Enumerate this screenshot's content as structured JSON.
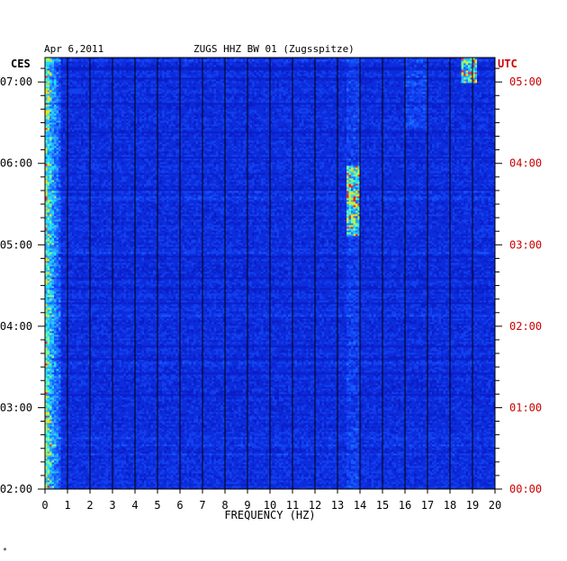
{
  "header": {
    "date": "Apr 6,2011",
    "station": "ZUGS HHZ BW 01 (Zugsspitze)"
  },
  "left_timezone": "CES",
  "right_timezone": "UTC",
  "corner_mark": "*",
  "chart_data": {
    "type": "heatmap",
    "title": "ZUGS HHZ BW 01 (Zugsspitze)",
    "subtitle": "Apr 6,2011",
    "xlabel": "FREQUENCY (HZ)",
    "ylabel": "",
    "xlim": [
      0,
      20
    ],
    "x_ticks": [
      "0",
      "1",
      "2",
      "3",
      "4",
      "5",
      "6",
      "7",
      "8",
      "9",
      "10",
      "11",
      "12",
      "13",
      "14",
      "15",
      "16",
      "17",
      "18",
      "19",
      "20"
    ],
    "left_y_axis": {
      "label": "CES",
      "ticks": [
        "02:00",
        "03:00",
        "04:00",
        "05:00",
        "06:00",
        "07:00"
      ]
    },
    "right_y_axis": {
      "label": "UTC",
      "ticks": [
        "00:00",
        "01:00",
        "02:00",
        "03:00",
        "04:00",
        "05:00"
      ]
    },
    "time_span_hours": 5.3,
    "grid": true,
    "colors": {
      "background_low": "#0a1fc8",
      "mid": "#1a7dff",
      "high": "#20e0ff",
      "peak": "#ffe000",
      "max": "#ff2020",
      "grid": "#000000",
      "left_axis_text": "#000000",
      "right_axis_text": "#cc0000"
    },
    "features": [
      {
        "description": "energy band",
        "freq_hz": [
          0.1,
          0.6
        ],
        "intensity": "very high"
      },
      {
        "description": "energy band",
        "freq_hz": [
          13.5,
          14.0
        ],
        "intensity": "high"
      },
      {
        "description": "energy band",
        "freq_hz": [
          18.5,
          19.2
        ],
        "intensity": "high near top"
      }
    ]
  }
}
